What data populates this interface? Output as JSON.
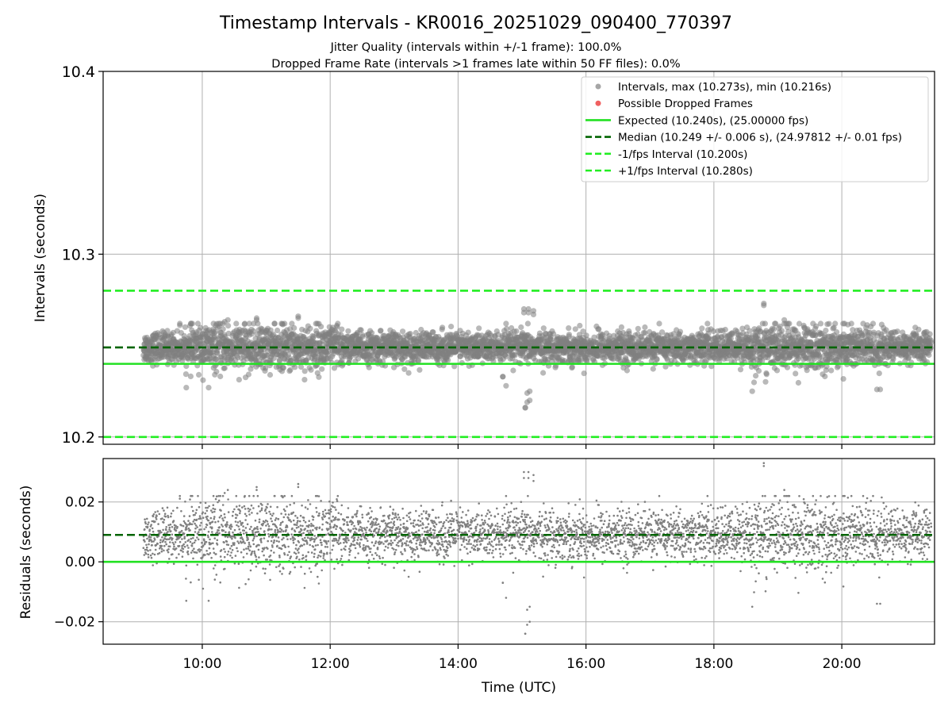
{
  "header": {
    "title": "Timestamp Intervals - KR0016_20251029_090400_770397",
    "subtitle_1": "Jitter Quality (intervals within +/-1 frame): 100.0%",
    "subtitle_2": "Dropped Frame Rate (intervals >1 frames late within 50 FF files): 0.0%"
  },
  "chart_data": [
    {
      "type": "scatter",
      "panel": "intervals",
      "ylabel": "Intervals (seconds)",
      "xlabel": "",
      "xlim_hours": [
        8.45,
        21.45
      ],
      "ylim": [
        10.196,
        10.4
      ],
      "yticks": [
        10.2,
        10.3,
        10.4
      ],
      "ytick_labels": [
        "10.2",
        "10.3",
        "10.4"
      ],
      "grid": true,
      "point_color": "#808080",
      "series_summary": {
        "name": "Intervals",
        "count_approx": 4300,
        "x_start_hours": 9.08,
        "x_end_hours": 21.4,
        "max": 10.273,
        "min": 10.216,
        "median": 10.249
      },
      "reference_lines": [
        {
          "name": "Expected",
          "value": 10.24,
          "color": "#22e122",
          "style": "solid"
        },
        {
          "name": "Median",
          "value": 10.249,
          "color": "#006400",
          "style": "dashed"
        },
        {
          "name": "-1/fps Interval",
          "value": 10.2,
          "color": "#22ee22",
          "style": "dashed"
        },
        {
          "name": "+1/fps Interval",
          "value": 10.28,
          "color": "#22ee22",
          "style": "dashed"
        }
      ],
      "legend": {
        "position": "top-right",
        "entries": [
          {
            "label": "Intervals, max (10.273s), min (10.216s)",
            "marker": "dot",
            "color": "#a6a6a6"
          },
          {
            "label": "Possible Dropped Frames",
            "marker": "dot",
            "color": "#f06060"
          },
          {
            "label": "Expected (10.240s), (25.00000 fps)",
            "marker": "solid",
            "color": "#22e122"
          },
          {
            "label": "Median (10.249 +/- 0.006 s), (24.97812 +/- 0.01 fps)",
            "marker": "dashed",
            "color": "#006400"
          },
          {
            "label": "-1/fps Interval (10.200s)",
            "marker": "dashed",
            "color": "#22ee22"
          },
          {
            "label": "+1/fps Interval (10.280s)",
            "marker": "dashed",
            "color": "#22ee22"
          }
        ]
      },
      "outliers": [
        [
          15.05,
          10.216
        ],
        [
          15.08,
          10.219
        ],
        [
          15.12,
          10.225
        ],
        [
          14.7,
          10.233
        ],
        [
          14.75,
          10.228
        ],
        [
          15.03,
          10.268
        ],
        [
          15.1,
          10.27
        ],
        [
          15.18,
          10.267
        ],
        [
          18.78,
          10.272
        ],
        [
          19.1,
          10.262
        ],
        [
          11.5,
          10.265
        ],
        [
          10.35,
          10.263
        ],
        [
          10.85,
          10.264
        ],
        [
          19.55,
          10.262
        ],
        [
          20.6,
          10.226
        ],
        [
          20.15,
          10.262
        ],
        [
          14.75,
          10.262
        ],
        [
          16.2,
          10.259
        ],
        [
          17.9,
          10.262
        ],
        [
          9.65,
          10.262
        ]
      ]
    },
    {
      "type": "scatter",
      "panel": "residuals",
      "ylabel": "Residuals (seconds)",
      "xlabel": "Time (UTC)",
      "xlim_hours": [
        8.45,
        21.45
      ],
      "ylim": [
        -0.0275,
        0.0345
      ],
      "yticks": [
        -0.02,
        0.0,
        0.02
      ],
      "ytick_labels": [
        "−0.02",
        "0.00",
        "0.02"
      ],
      "xticks_hours": [
        10,
        12,
        14,
        16,
        18,
        20
      ],
      "xtick_labels": [
        "10:00",
        "12:00",
        "14:00",
        "16:00",
        "18:00",
        "20:00"
      ],
      "grid": true,
      "point_color": "#808080",
      "reference_lines": [
        {
          "name": "Expected",
          "value": 0.0,
          "color": "#22e122",
          "style": "solid"
        },
        {
          "name": "Median",
          "value": 0.009,
          "color": "#006400",
          "style": "dashed"
        }
      ],
      "outliers": [
        [
          15.05,
          -0.024
        ],
        [
          15.12,
          -0.02
        ],
        [
          15.08,
          -0.016
        ],
        [
          15.03,
          0.03
        ],
        [
          15.1,
          0.028
        ],
        [
          15.18,
          0.029
        ],
        [
          18.78,
          0.033
        ],
        [
          11.5,
          0.026
        ],
        [
          10.85,
          0.025
        ],
        [
          10.4,
          0.024
        ],
        [
          19.1,
          0.024
        ],
        [
          14.7,
          -0.007
        ],
        [
          18.6,
          -0.015
        ],
        [
          20.55,
          -0.014
        ],
        [
          9.75,
          -0.013
        ],
        [
          10.1,
          -0.013
        ]
      ]
    }
  ]
}
